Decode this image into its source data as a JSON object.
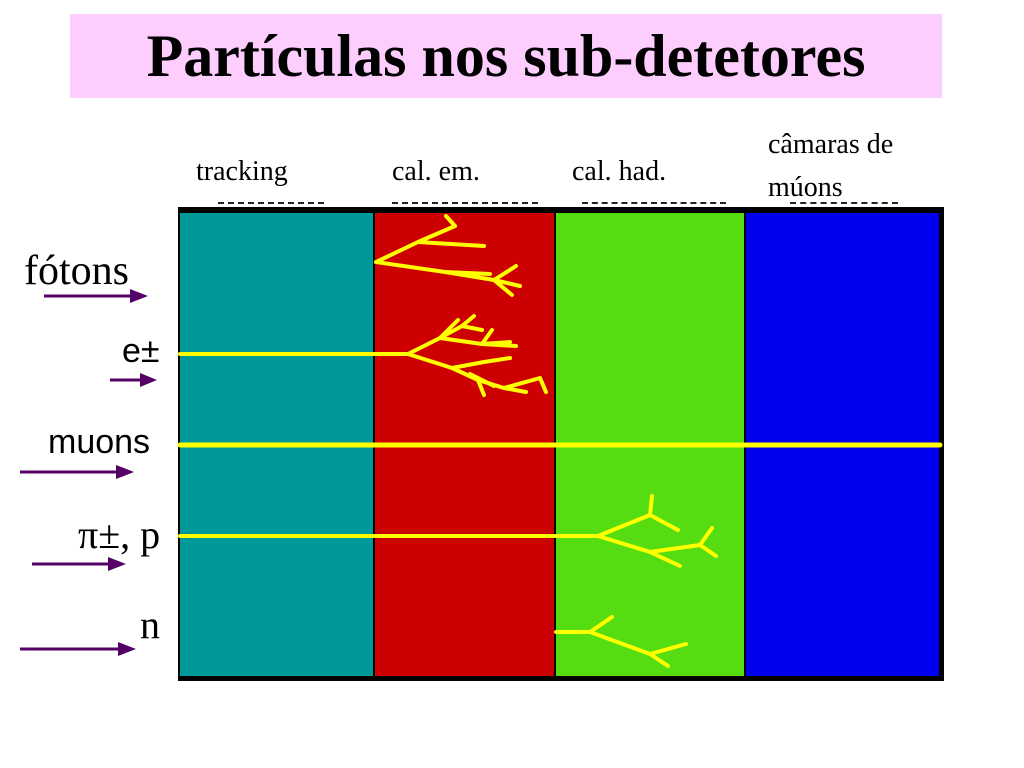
{
  "title": "Partículas nos sub-detetores",
  "colors": {
    "title_bg": "#fdcdfd",
    "tracking": "#009999",
    "calorimeter_em": "#cc0000",
    "calorimeter_had": "#55dd11",
    "muon_chambers": "#0000ee",
    "track": "#ffff00",
    "arrow": "#550066"
  },
  "columns": {
    "tracking": "tracking",
    "em_cal": "cal. em.",
    "had_cal": "cal. had.",
    "muon_line1": "câmaras de",
    "muon_line2": "múons"
  },
  "particles": {
    "photons": "fótons",
    "electrons": "e±",
    "muons": "muons",
    "pions_protons": "π±, p",
    "neutrons": "n"
  }
}
